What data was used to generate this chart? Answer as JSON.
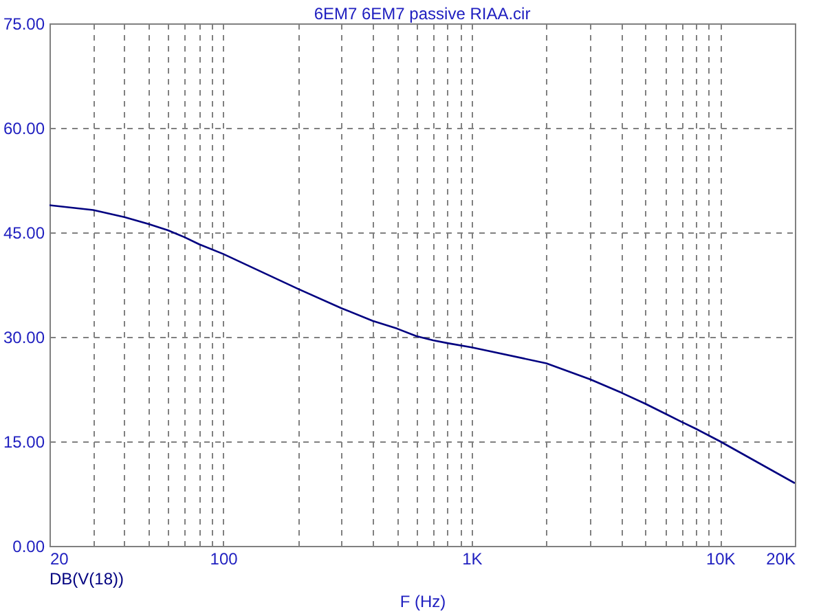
{
  "chart_data": {
    "type": "line",
    "title": "6EM7 6EM7 passive RIAA.cir",
    "xlabel": "F (Hz)",
    "log": "x",
    "grid": true,
    "x": [
      20,
      30,
      40,
      50,
      60,
      70,
      80,
      100,
      200,
      300,
      400,
      500,
      600,
      700,
      800,
      1000,
      2000,
      3000,
      4000,
      5000,
      6000,
      7000,
      8000,
      10000,
      20000
    ],
    "series": [
      {
        "name": "DB(V(18))",
        "color": "#000080",
        "values": [
          48.9,
          48.2,
          47.2,
          46.2,
          45.3,
          44.3,
          43.3,
          41.9,
          36.9,
          34.1,
          32.3,
          31.2,
          30.1,
          29.5,
          29.1,
          28.5,
          26.2,
          23.9,
          22.0,
          20.4,
          19.0,
          17.8,
          16.8,
          15.0,
          9.0
        ]
      }
    ],
    "xlim": [
      20,
      20000
    ],
    "ylim": [
      0,
      75
    ],
    "xticks": [
      {
        "value": 20,
        "label": "20"
      },
      {
        "value": 30,
        "label": null
      },
      {
        "value": 40,
        "label": null
      },
      {
        "value": 50,
        "label": null
      },
      {
        "value": 60,
        "label": null
      },
      {
        "value": 70,
        "label": null
      },
      {
        "value": 80,
        "label": null
      },
      {
        "value": 90,
        "label": null
      },
      {
        "value": 100,
        "label": "100"
      },
      {
        "value": 200,
        "label": null
      },
      {
        "value": 300,
        "label": null
      },
      {
        "value": 400,
        "label": null
      },
      {
        "value": 500,
        "label": null
      },
      {
        "value": 600,
        "label": null
      },
      {
        "value": 700,
        "label": null
      },
      {
        "value": 800,
        "label": null
      },
      {
        "value": 900,
        "label": null
      },
      {
        "value": 1000,
        "label": "1K"
      },
      {
        "value": 2000,
        "label": null
      },
      {
        "value": 3000,
        "label": null
      },
      {
        "value": 4000,
        "label": null
      },
      {
        "value": 5000,
        "label": null
      },
      {
        "value": 6000,
        "label": null
      },
      {
        "value": 7000,
        "label": null
      },
      {
        "value": 8000,
        "label": null
      },
      {
        "value": 9000,
        "label": null
      },
      {
        "value": 10000,
        "label": "10K"
      },
      {
        "value": 20000,
        "label": "20K"
      }
    ],
    "yticks": [
      {
        "value": 0,
        "label": "0.00"
      },
      {
        "value": 15,
        "label": "15.00"
      },
      {
        "value": 30,
        "label": "30.00"
      },
      {
        "value": 45,
        "label": "45.00"
      },
      {
        "value": 60,
        "label": "60.00"
      },
      {
        "value": 75,
        "label": "75.00"
      }
    ]
  }
}
